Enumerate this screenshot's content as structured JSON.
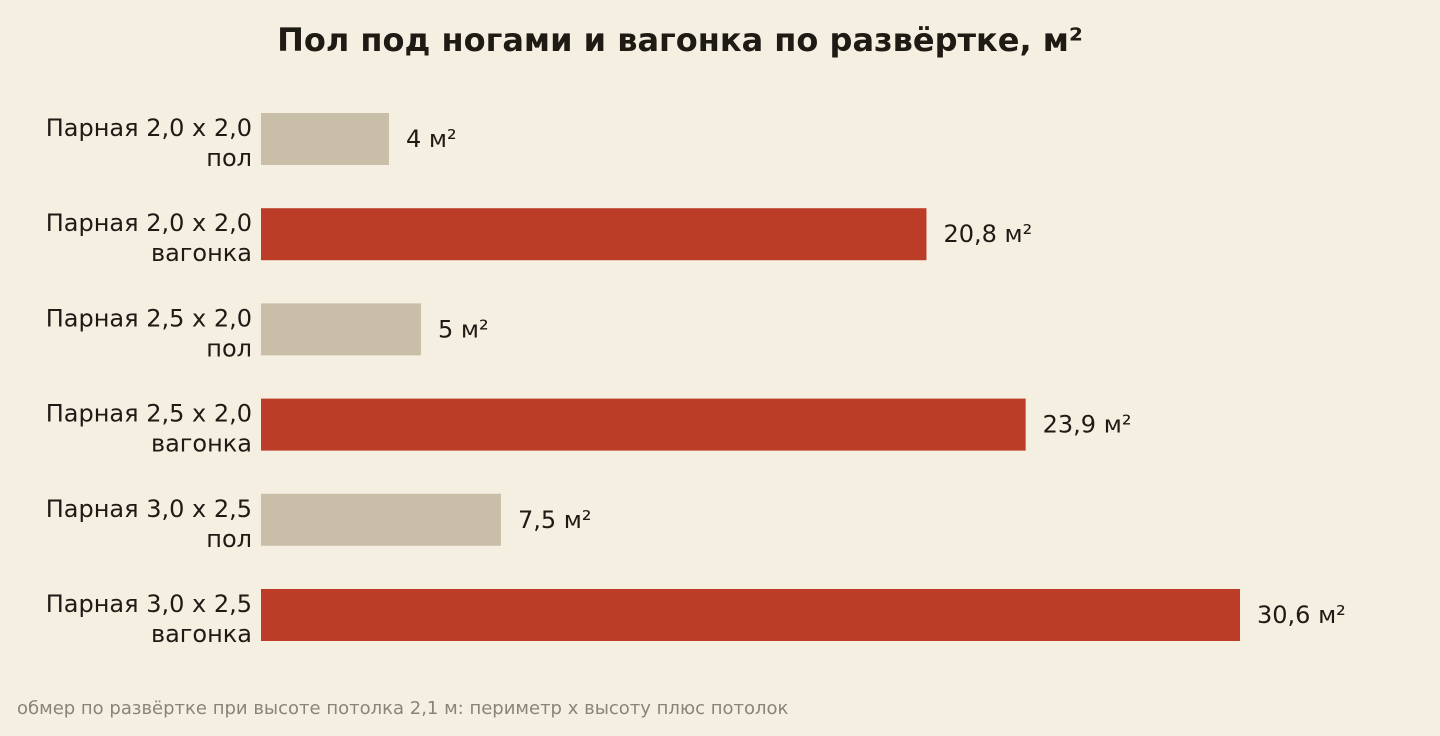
{
  "chart_data": {
    "type": "bar",
    "orientation": "horizontal",
    "title": "Пол под ногами и вагонка по развёртке, м²",
    "footnote": "обмер по развёртке при высоте потолка 2,1 м: периметр х высоту плюс потолок",
    "categories": [
      [
        "Парная 2,0 х 2,0",
        "пол"
      ],
      [
        "Парная 2,0 х 2,0",
        "вагонка"
      ],
      [
        "Парная 2,5 х 2,0",
        "пол"
      ],
      [
        "Парная 2,5 х 2,0",
        "вагонка"
      ],
      [
        "Парная 3,0 х 2,5",
        "пол"
      ],
      [
        "Парная 3,0 х 2,5",
        "вагонка"
      ]
    ],
    "values": [
      4,
      20.8,
      5,
      23.9,
      7.5,
      30.6
    ],
    "value_labels": [
      "4 м²",
      "20,8 м²",
      "5 м²",
      "23,9 м²",
      "7,5 м²",
      "30,6 м²"
    ],
    "kinds": [
      "floor",
      "lining",
      "floor",
      "lining",
      "floor",
      "lining"
    ],
    "colors": {
      "floor": "#c9bfa8",
      "lining": "#bc3d27",
      "background": "#f5efe2",
      "text": "#1e1a14",
      "footnote": "#8a8478"
    },
    "xlim": [
      0,
      30.6
    ],
    "grid": false,
    "legend": "none"
  }
}
